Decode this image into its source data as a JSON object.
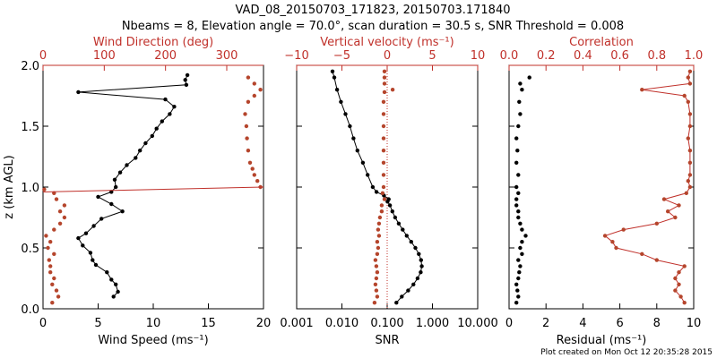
{
  "header": {
    "title_line1": "VAD_08_20150703_171823, 20150703.171840",
    "title_line2": "Nbeams = 8, Elevation angle = 70.0°, scan duration = 30.5 s, SNR Threshold = 0.008"
  },
  "footer": {
    "created": "Plot created on Mon Oct 12 20:35:28 2015"
  },
  "colors": {
    "black": "#000000",
    "red": "#c0302a",
    "brown": "#b5452c"
  },
  "chart_data": [
    {
      "type": "line",
      "name": "wind",
      "ylabel": "z (km AGL)",
      "ylim": [
        0,
        2
      ],
      "yticks": [
        "0.0",
        "0.5",
        "1.0",
        "1.5",
        "2.0"
      ],
      "bottom_axis": {
        "label": "Wind Speed (ms⁻¹)",
        "range": [
          0,
          20
        ],
        "ticks": [
          "0",
          "5",
          "10",
          "15",
          "20"
        ]
      },
      "top_axis": {
        "label": "Wind Direction (deg)",
        "range": [
          0,
          360
        ],
        "ticks": [
          "0",
          "100",
          "200",
          "300"
        ]
      },
      "series": [
        {
          "name": "Wind Speed",
          "axis": "bottom",
          "style": "black-line-dots",
          "z": [
            0.1,
            0.14,
            0.2,
            0.24,
            0.3,
            0.36,
            0.4,
            0.46,
            0.52,
            0.58,
            0.62,
            0.68,
            0.74,
            0.8,
            0.86,
            0.92,
            0.96,
            1.0,
            1.06,
            1.12,
            1.18,
            1.24,
            1.3,
            1.36,
            1.42,
            1.48,
            1.54,
            1.6,
            1.66,
            1.72,
            1.78,
            1.84,
            1.88,
            1.92
          ],
          "values": [
            6.4,
            6.8,
            6.6,
            6.2,
            5.8,
            4.8,
            4.5,
            4.3,
            3.6,
            3.2,
            3.9,
            4.6,
            5.3,
            7.2,
            6.2,
            5.0,
            6.2,
            6.6,
            6.5,
            7.0,
            7.6,
            8.4,
            8.8,
            9.3,
            9.9,
            10.3,
            10.8,
            11.5,
            11.9,
            11.1,
            3.2,
            13.0,
            12.9,
            13.1
          ]
        },
        {
          "name": "Wind Direction",
          "axis": "top",
          "style": "red-dots",
          "z": [
            0.05,
            0.1,
            0.15,
            0.2,
            0.25,
            0.3,
            0.35,
            0.4,
            0.45,
            0.5,
            0.55,
            0.6,
            0.65,
            0.7,
            0.75,
            0.8,
            0.85,
            0.9,
            0.95,
            0.98,
            1.0,
            1.05,
            1.1,
            1.15,
            1.2,
            1.3,
            1.4,
            1.5,
            1.6,
            1.7,
            1.75,
            1.8,
            1.85,
            1.9
          ],
          "values": [
            15,
            25,
            22,
            15,
            18,
            12,
            12,
            10,
            18,
            8,
            12,
            5,
            18,
            28,
            35,
            28,
            35,
            22,
            18,
            2,
            355,
            350,
            345,
            342,
            338,
            335,
            333,
            332,
            330,
            335,
            345,
            355,
            345,
            335
          ]
        }
      ]
    },
    {
      "type": "line",
      "name": "vertical-velocity-snr",
      "ylim": [
        0,
        2
      ],
      "bottom_axis": {
        "label": "SNR",
        "scale": "log",
        "range": [
          0.001,
          10
        ],
        "ticks": [
          "0.001",
          "0.010",
          "0.100",
          "1.000",
          "10.000"
        ]
      },
      "top_axis": {
        "label": "Vertical velocity (ms⁻¹)",
        "range": [
          -10,
          10
        ],
        "ticks": [
          "−10",
          "−5",
          "0",
          "5",
          "10"
        ]
      },
      "series": [
        {
          "name": "SNR",
          "axis": "bottom",
          "style": "black-line-dots",
          "z": [
            0.05,
            0.1,
            0.15,
            0.2,
            0.25,
            0.3,
            0.35,
            0.4,
            0.45,
            0.5,
            0.55,
            0.6,
            0.65,
            0.7,
            0.75,
            0.8,
            0.85,
            0.88,
            0.9,
            0.93,
            0.96,
            1.0,
            1.1,
            1.2,
            1.3,
            1.4,
            1.5,
            1.6,
            1.7,
            1.8,
            1.9,
            1.95
          ],
          "values": [
            0.16,
            0.21,
            0.29,
            0.38,
            0.47,
            0.55,
            0.58,
            0.56,
            0.5,
            0.42,
            0.34,
            0.27,
            0.22,
            0.18,
            0.15,
            0.13,
            0.115,
            0.102,
            0.108,
            0.085,
            0.058,
            0.048,
            0.037,
            0.029,
            0.022,
            0.018,
            0.015,
            0.012,
            0.0095,
            0.0078,
            0.0068,
            0.0062
          ]
        },
        {
          "name": "Vertical velocity",
          "axis": "top",
          "style": "red-dots",
          "z": [
            0.05,
            0.1,
            0.15,
            0.2,
            0.25,
            0.3,
            0.35,
            0.4,
            0.45,
            0.5,
            0.55,
            0.6,
            0.65,
            0.7,
            0.75,
            0.8,
            0.85,
            0.9,
            0.95,
            1.0,
            1.1,
            1.2,
            1.3,
            1.4,
            1.5,
            1.6,
            1.7,
            1.78,
            1.8,
            1.85,
            1.9,
            1.95
          ],
          "values": [
            -1.4,
            -1.1,
            -1.2,
            -1.3,
            -1.2,
            -1.1,
            -1.2,
            -1.3,
            -1.1,
            -1.0,
            -1.1,
            -0.9,
            -1.0,
            -0.9,
            -0.8,
            -0.6,
            -0.6,
            -0.3,
            -0.5,
            -0.4,
            -0.4,
            -0.4,
            -0.4,
            -0.4,
            -0.4,
            -0.4,
            -0.4,
            -0.3,
            0.6,
            -0.3,
            -0.3,
            -0.3
          ]
        }
      ]
    },
    {
      "type": "line",
      "name": "residual-correlation",
      "ylim": [
        0,
        2
      ],
      "bottom_axis": {
        "label": "Residual (ms⁻¹)",
        "range": [
          0,
          10
        ],
        "ticks": [
          "0",
          "2",
          "4",
          "6",
          "8",
          "10"
        ]
      },
      "top_axis": {
        "label": "Correlation",
        "range": [
          0,
          1
        ],
        "ticks": [
          "0.0",
          "0.2",
          "0.4",
          "0.6",
          "0.8",
          "1.0"
        ]
      },
      "series": [
        {
          "name": "Residual",
          "axis": "bottom",
          "style": "black-dots",
          "z": [
            0.05,
            0.1,
            0.15,
            0.2,
            0.25,
            0.3,
            0.35,
            0.4,
            0.45,
            0.5,
            0.55,
            0.6,
            0.65,
            0.7,
            0.75,
            0.8,
            0.85,
            0.9,
            0.95,
            1.0,
            1.1,
            1.2,
            1.3,
            1.4,
            1.5,
            1.6,
            1.7,
            1.8,
            1.85,
            1.9
          ],
          "values": [
            0.4,
            0.5,
            0.45,
            0.4,
            0.5,
            0.55,
            0.6,
            0.5,
            0.7,
            0.6,
            0.7,
            0.9,
            0.7,
            0.6,
            0.5,
            0.5,
            0.4,
            0.4,
            0.5,
            0.4,
            0.5,
            0.4,
            0.45,
            0.4,
            0.5,
            0.6,
            0.55,
            0.7,
            0.6,
            1.1
          ]
        },
        {
          "name": "Correlation",
          "axis": "top",
          "style": "red-line-dots",
          "z": [
            0.05,
            0.1,
            0.15,
            0.2,
            0.25,
            0.3,
            0.35,
            0.4,
            0.45,
            0.5,
            0.55,
            0.6,
            0.65,
            0.7,
            0.75,
            0.8,
            0.85,
            0.9,
            0.95,
            1.0,
            1.05,
            1.1,
            1.2,
            1.3,
            1.4,
            1.5,
            1.6,
            1.7,
            1.75,
            1.8,
            1.85,
            1.9,
            1.95
          ],
          "values": [
            0.95,
            0.93,
            0.9,
            0.92,
            0.9,
            0.92,
            0.95,
            0.8,
            0.72,
            0.58,
            0.56,
            0.52,
            0.62,
            0.8,
            0.9,
            0.86,
            0.92,
            0.84,
            0.96,
            0.98,
            0.97,
            0.98,
            0.98,
            0.98,
            0.97,
            0.98,
            0.98,
            0.97,
            0.95,
            0.72,
            0.98,
            0.97,
            0.98
          ]
        }
      ]
    }
  ]
}
